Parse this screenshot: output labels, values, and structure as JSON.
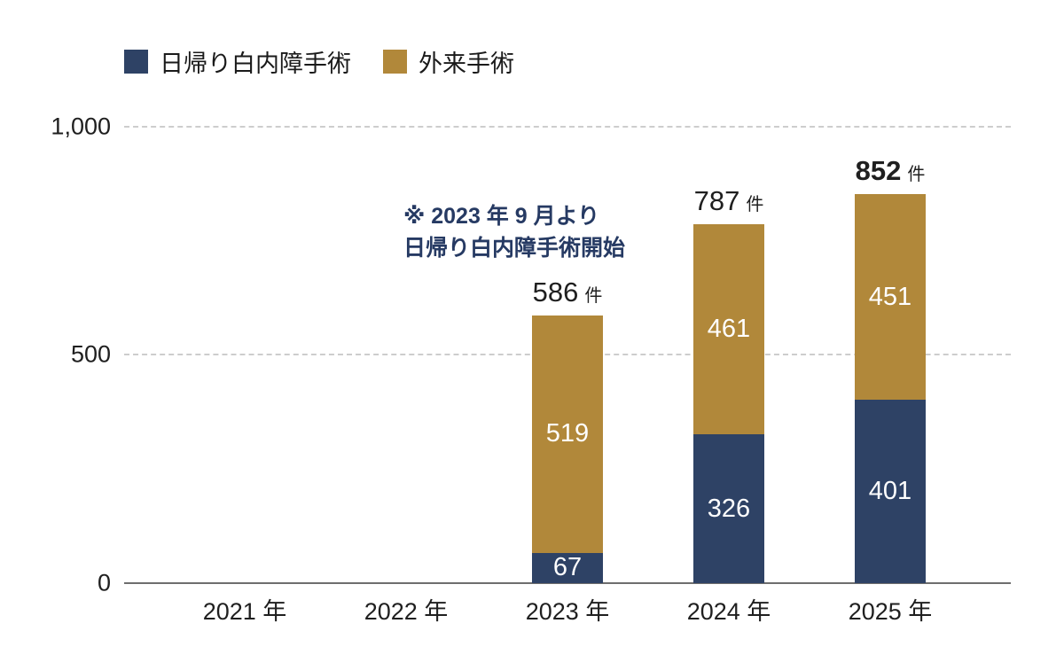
{
  "legend": {
    "items": [
      {
        "label": "日帰り白内障手術",
        "color": "#2e4265"
      },
      {
        "label": "外来手術",
        "color": "#b1883a"
      }
    ]
  },
  "annotation": {
    "line1": "※ 2023 年 9 月より",
    "line2": "日帰り白内障手術開始"
  },
  "chart_data": {
    "type": "bar",
    "stacked": true,
    "categories": [
      "2021 年",
      "2022 年",
      "2023 年",
      "2024 年",
      "2025 年"
    ],
    "series": [
      {
        "name": "日帰り白内障手術",
        "color": "#2e4265",
        "values": [
          0,
          0,
          67,
          326,
          401
        ]
      },
      {
        "name": "外来手術",
        "color": "#b1883a",
        "values": [
          0,
          0,
          519,
          461,
          451
        ]
      }
    ],
    "totals": [
      null,
      null,
      586,
      787,
      852
    ],
    "unit": "件",
    "bold_totals": [
      false,
      false,
      false,
      false,
      true
    ],
    "ylim": [
      0,
      1000
    ],
    "yticks": [
      0,
      500,
      1000
    ],
    "ytick_labels": [
      "0",
      "500",
      "1,000"
    ],
    "legend_position": "top-left",
    "grid": "horizontal-dashed",
    "value_label_color": "#ffffff",
    "total_label_color": "#1f1f1f"
  }
}
